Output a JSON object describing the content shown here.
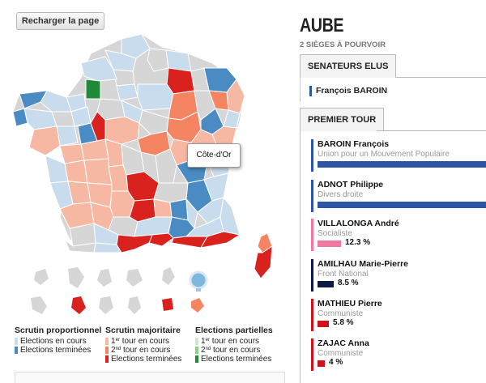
{
  "toolbar": {
    "reload_label": "Recharger la page"
  },
  "map": {
    "tooltip": "Côte-d'Or",
    "colors": {
      "proportional_running": "#c9dced",
      "proportional_done": "#4a8bc4",
      "majority_first_round": "#f6b8a2",
      "majority_second_round": "#f58462",
      "majority_done": "#d9211e",
      "partial_first": "#cfe8cc",
      "partial_second": "#8ed185",
      "partial_done": "#1e8b3a",
      "no_election": "#d6d6d6",
      "dom_globe": "#7fb8dd"
    }
  },
  "legend": {
    "proportional": {
      "title": "Scrutin proportionnel",
      "items": [
        "Elections en cours",
        "Elections terminées"
      ]
    },
    "majority": {
      "title": "Scrutin majoritaire",
      "first_ordinal": "1",
      "first_sup": "er",
      "first_rest": "tour en cours",
      "second_ordinal": "2",
      "second_sup": "nd",
      "second_rest": "tour en cours",
      "done": "Elections terminées"
    },
    "partial": {
      "title": "Elections partielles",
      "first_ordinal": "1",
      "first_sup": "er",
      "first_rest": "tour en cours",
      "second_ordinal": "2",
      "second_sup": "nd",
      "second_rest": "tour en cours",
      "done": "Elections terminées"
    }
  },
  "department": {
    "name": "AUBE",
    "seats": "2 SIÈGES À POURVOIR"
  },
  "elected": {
    "tab": "SENATEURS ELUS",
    "senators": [
      {
        "name": "François BAROIN",
        "color": "#2d55a5"
      }
    ]
  },
  "first_round": {
    "tab": "PREMIER TOUR",
    "candidates": [
      {
        "name": "BAROIN François",
        "party": "Union pour un Mouvement Populaire",
        "percent_label": "",
        "share": 1.0,
        "color": "#2d55a5"
      },
      {
        "name": "ADNOT Philippe",
        "party": "Divers droite",
        "percent_label": "",
        "share": 1.0,
        "color": "#2d55a5"
      },
      {
        "name": "VILLALONGA André",
        "party": "Socialiste",
        "percent_label": "12.3 %",
        "share": 0.123,
        "color": "#f1779e"
      },
      {
        "name": "AMILHAU Marie-Pierre",
        "party": "Front National",
        "percent_label": "8.5 %",
        "share": 0.085,
        "color": "#0e1a45"
      },
      {
        "name": "MATHIEU Pierre",
        "party": "Communiste",
        "percent_label": "5.8 %",
        "share": 0.058,
        "color": "#d0121a"
      },
      {
        "name": "ZAJAC Anna",
        "party": "Communiste",
        "percent_label": "4 %",
        "share": 0.04,
        "color": "#d0121a"
      }
    ]
  }
}
